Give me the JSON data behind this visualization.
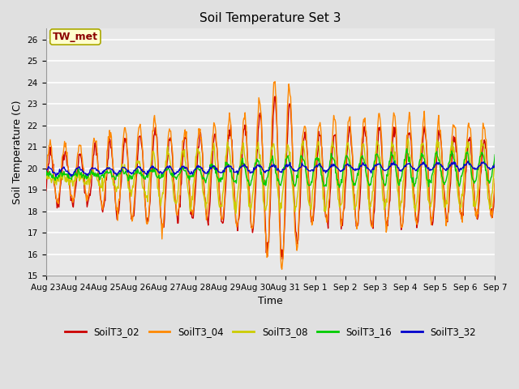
{
  "title": "Soil Temperature Set 3",
  "xlabel": "Time",
  "ylabel": "Soil Temperature (C)",
  "ylim": [
    15.0,
    26.5
  ],
  "yticks": [
    15.0,
    16.0,
    17.0,
    18.0,
    19.0,
    20.0,
    21.0,
    22.0,
    23.0,
    24.0,
    25.0,
    26.0
  ],
  "bg_color": "#e0e0e0",
  "plot_bg_color": "#e8e8e8",
  "grid_color": "#ffffff",
  "annotation_text": "TW_met",
  "annotation_color": "#8b0000",
  "annotation_bg": "#ffffcc",
  "annotation_border": "#aaa800",
  "series_colors": {
    "SoilT3_02": "#cc0000",
    "SoilT3_04": "#ff8800",
    "SoilT3_08": "#cccc00",
    "SoilT3_16": "#00cc00",
    "SoilT3_32": "#0000cc"
  },
  "line_width": 1.0,
  "x_tick_labels": [
    "Aug 23",
    "Aug 24",
    "Aug 25",
    "Aug 26",
    "Aug 27",
    "Aug 28",
    "Aug 29",
    "Aug 30",
    "Aug 31",
    "Sep 1",
    "Sep 2",
    "Sep 3",
    "Sep 4",
    "Sep 5",
    "Sep 6",
    "Sep 7"
  ]
}
